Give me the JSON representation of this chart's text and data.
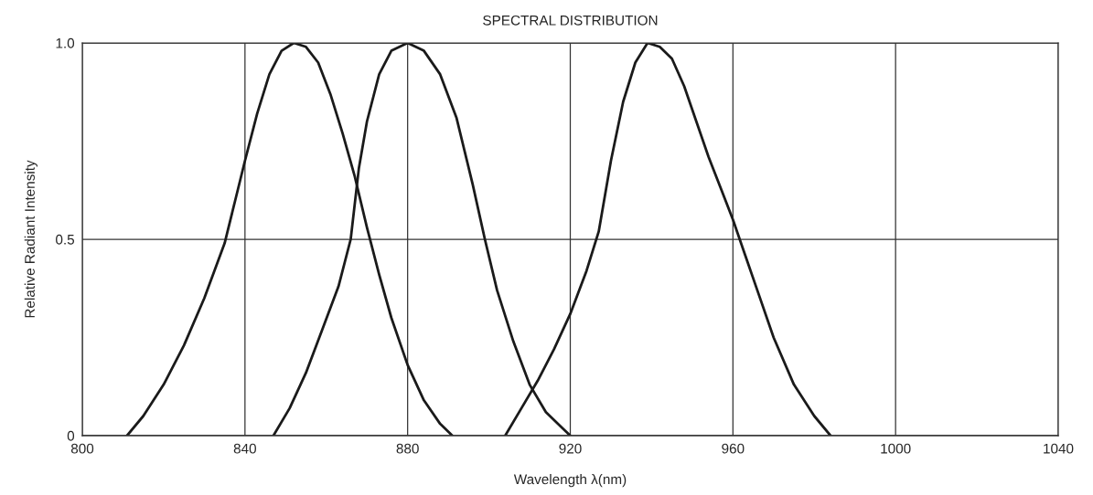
{
  "chart_data": {
    "type": "line",
    "title": "SPECTRAL DISTRIBUTION",
    "xlabel": "Wavelength λ(nm)",
    "ylabel": "Relative Radiant Intensity",
    "xlim": [
      800,
      1040
    ],
    "xticks": [
      800,
      840,
      880,
      920,
      960,
      1000,
      1040
    ],
    "ylim": [
      0,
      1.0
    ],
    "yticks": [
      0,
      0.5,
      {
        "value": 1.0,
        "label": "1.0"
      }
    ],
    "grid": true,
    "line_style": "solid",
    "series": [
      {
        "color": "#1a1a1a",
        "x": [
          811,
          815,
          820,
          825,
          830,
          835,
          840,
          843,
          846,
          849,
          852,
          855,
          858,
          861,
          864,
          867,
          870,
          873,
          876,
          880,
          884,
          888,
          891
        ],
        "values": [
          0,
          0.05,
          0.13,
          0.23,
          0.35,
          0.49,
          0.7,
          0.82,
          0.92,
          0.98,
          1.0,
          0.99,
          0.95,
          0.87,
          0.77,
          0.66,
          0.53,
          0.41,
          0.3,
          0.18,
          0.09,
          0.03,
          0
        ]
      },
      {
        "color": "#1a1a1a",
        "x": [
          847,
          851,
          855,
          859,
          863,
          866,
          868,
          870,
          873,
          876,
          880,
          884,
          888,
          892,
          896,
          899,
          902,
          906,
          910,
          914,
          918,
          920
        ],
        "values": [
          0,
          0.07,
          0.16,
          0.27,
          0.38,
          0.5,
          0.68,
          0.8,
          0.92,
          0.98,
          1.0,
          0.98,
          0.92,
          0.81,
          0.64,
          0.5,
          0.37,
          0.24,
          0.13,
          0.06,
          0.02,
          0
        ]
      },
      {
        "color": "#1a1a1a",
        "x": [
          904,
          908,
          912,
          916,
          920,
          924,
          927,
          930,
          933,
          936,
          939,
          942,
          945,
          948,
          951,
          954,
          957,
          960,
          963,
          966,
          970,
          975,
          980,
          984
        ],
        "values": [
          0,
          0.07,
          0.14,
          0.22,
          0.31,
          0.42,
          0.52,
          0.7,
          0.85,
          0.95,
          1.0,
          0.99,
          0.96,
          0.89,
          0.8,
          0.71,
          0.63,
          0.55,
          0.46,
          0.37,
          0.25,
          0.13,
          0.05,
          0
        ]
      }
    ]
  }
}
